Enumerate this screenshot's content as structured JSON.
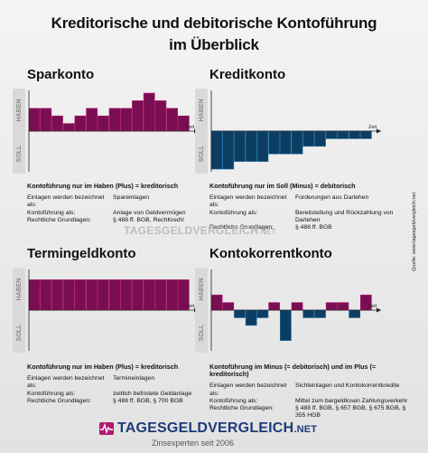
{
  "title_line1": "Kreditorische und debitorische Kontoführung",
  "title_line2": "im Überblick",
  "haben_label": "HABEN",
  "soll_label": "SOLL",
  "zeit_label": "Zeit",
  "colors": {
    "positive": "#7a0e52",
    "positive_light": "#b0196f",
    "negative": "#0d3d63",
    "negative_light": "#1a6c9a"
  },
  "panels": {
    "sparkonto": {
      "title": "Sparkonto",
      "head": "Kontoführung nur im Haben (Plus) = kreditorisch",
      "rows": [
        {
          "k": "Einlagen werden bezeichnet als:",
          "v": "Spareinlagen"
        },
        {
          "k": "Kontoführung als:",
          "v": "Anlage von Geldvermögen"
        },
        {
          "k": "Rechtliche Grundlagen:",
          "v": "§ 488 ff. BGB, RechKredV"
        }
      ]
    },
    "kreditkonto": {
      "title": "Kreditkonto",
      "head": "Kontoführung nur im Soll (Minus) = debitorisch",
      "rows": [
        {
          "k": "Einlagen werden bezeichnet als:",
          "v": "Forderungen aus Darlehen"
        },
        {
          "k": "Kontoführung als:",
          "v": "Bereitstellung und Rückzahlung von Darlehen"
        },
        {
          "k": "Rechtliche Grundlagen:",
          "v": "§ 488 ff. BGB"
        }
      ]
    },
    "termingeldkonto": {
      "title": "Termingeldkonto",
      "head": "Kontoführung nur im Haben (Plus) = kreditorisch",
      "rows": [
        {
          "k": "Einlagen werden bezeichnet als:",
          "v": "Termineinlagen"
        },
        {
          "k": "Kontoführung als:",
          "v": "zeitlich befristete Geldanlage"
        },
        {
          "k": "Rechtliche Grundlagen:",
          "v": "§ 488 ff. BGB, § 700 BGB"
        }
      ]
    },
    "kontokorrentkonto": {
      "title": "Kontokorrentkonto",
      "head": "Kontoführung im Minus (= debitorisch) und im Plus (= kreditorisch)",
      "rows": [
        {
          "k": "Einlagen werden bezeichnet als:",
          "v": "Sichteinlagen und Kontokorrentkredite"
        },
        {
          "k": "Kontoführung als:",
          "v": "Mittel zum bargeldlosen Zahlungsverkehr"
        },
        {
          "k": "Rechtliche Grundlagen:",
          "v": "§ 488 ff. BGB, § 657 BGB, § 675 BGB, § 355 HGB"
        }
      ]
    }
  },
  "watermark": {
    "name": "TAGESGELDVERGLEICH",
    "net": ".NET"
  },
  "source": "Quelle: www.tagesgeldvergleich.net",
  "logo": {
    "name": "TAGESGELDVERGLEICH",
    "net": ".NET",
    "tagline": "Zinsexperten seit 2006"
  },
  "chart_data": [
    {
      "type": "bar",
      "name": "Sparkonto",
      "values": [
        3,
        3,
        2,
        1,
        2,
        3,
        2,
        3,
        3,
        4,
        5,
        4,
        3,
        2
      ]
    },
    {
      "type": "bar",
      "name": "Kreditkonto",
      "values": [
        -5,
        -5,
        -4,
        -4,
        -4,
        -3,
        -3,
        -3,
        -2,
        -2,
        -1,
        -1,
        -1,
        -1
      ]
    },
    {
      "type": "bar",
      "name": "Termingeldkonto",
      "values": [
        4,
        4,
        4,
        4,
        4,
        4,
        4,
        4,
        4,
        4,
        4,
        4,
        4,
        4
      ]
    },
    {
      "type": "bar",
      "name": "Kontokorrentkonto",
      "values": [
        2,
        1,
        -1,
        -2,
        -1,
        1,
        -4,
        1,
        -1,
        -1,
        1,
        1,
        -1,
        2
      ]
    }
  ]
}
